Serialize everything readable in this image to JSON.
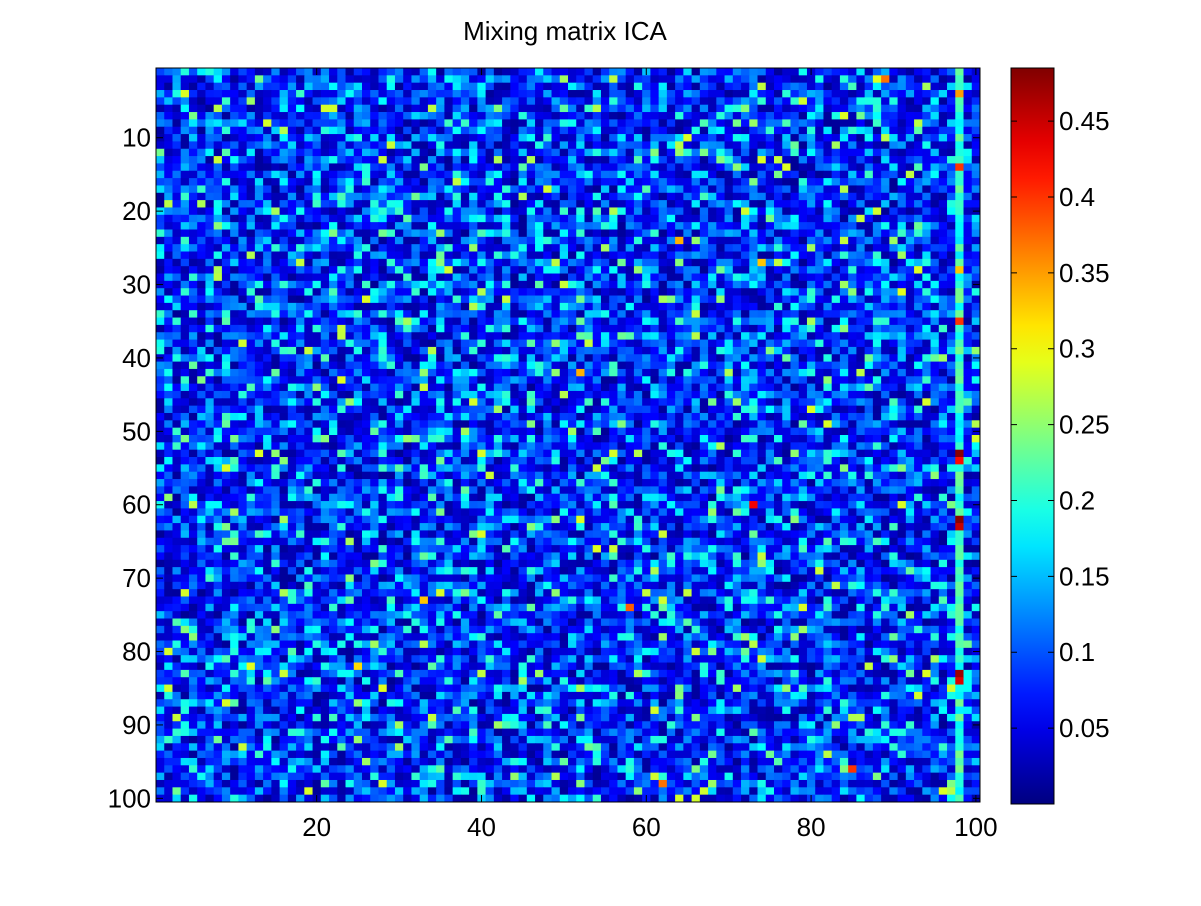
{
  "chart_data": {
    "type": "heatmap",
    "title": "Mixing matrix ICA",
    "xlabel": "",
    "ylabel": "",
    "rows": 100,
    "cols": 100,
    "xlim": [
      1,
      100
    ],
    "ylim": [
      1,
      100
    ],
    "y_direction": "reversed",
    "x_ticks": [
      20,
      40,
      60,
      80,
      100
    ],
    "y_ticks": [
      10,
      20,
      30,
      40,
      50,
      60,
      70,
      80,
      90,
      100
    ],
    "colormap": "jet",
    "color_range": [
      0,
      0.485
    ],
    "colorbar_ticks": [
      0.05,
      0.1,
      0.15,
      0.2,
      0.25,
      0.3,
      0.35,
      0.4,
      0.45
    ],
    "colorbar_tick_labels": [
      "0.05",
      "0.1",
      "0.15",
      "0.2",
      "0.25",
      "0.3",
      "0.35",
      "0.4",
      "0.45"
    ],
    "value_model": "values are small random weights, mostly 0.0-0.2 across the matrix (estimated)",
    "notable_cells": [
      {
        "row": 4,
        "col": 98,
        "value": 0.35
      },
      {
        "row": 14,
        "col": 98,
        "value": 0.4
      },
      {
        "row": 28,
        "col": 98,
        "value": 0.33
      },
      {
        "row": 35,
        "col": 98,
        "value": 0.4
      },
      {
        "row": 53,
        "col": 98,
        "value": 0.48
      },
      {
        "row": 54,
        "col": 98,
        "value": 0.42
      },
      {
        "row": 62,
        "col": 98,
        "value": 0.48
      },
      {
        "row": 63,
        "col": 98,
        "value": 0.45
      },
      {
        "row": 83,
        "col": 98,
        "value": 0.47
      },
      {
        "row": 84,
        "col": 98,
        "value": 0.44
      },
      {
        "row": 60,
        "col": 73,
        "value": 0.43
      },
      {
        "row": 74,
        "col": 58,
        "value": 0.38
      },
      {
        "row": 96,
        "col": 85,
        "value": 0.4
      },
      {
        "row": 98,
        "col": 62,
        "value": 0.37
      },
      {
        "row": 2,
        "col": 89,
        "value": 0.37
      },
      {
        "row": 42,
        "col": 52,
        "value": 0.34
      },
      {
        "row": 27,
        "col": 74,
        "value": 0.33
      },
      {
        "row": 24,
        "col": 64,
        "value": 0.34
      },
      {
        "row": 73,
        "col": 33,
        "value": 0.33
      },
      {
        "row": 82,
        "col": 25,
        "value": 0.32
      }
    ],
    "strong_column": {
      "col": 98,
      "mean_value": 0.2
    }
  }
}
